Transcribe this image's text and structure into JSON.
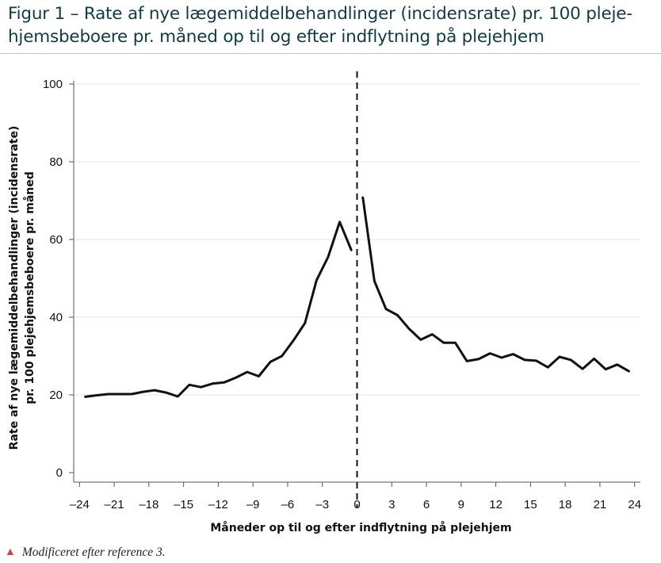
{
  "header": {
    "title": "Figur 1 – Rate af nye lægemiddelbehandlinger (incidensrate) pr. 100 pleje-hjemsbeboere pr. måned op til og efter indflytning på plejehjem"
  },
  "footnote": {
    "marker_icon": "triangle-icon",
    "marker_color": "#d83c3c",
    "text": "Modificeret efter reference 3."
  },
  "chart_data": {
    "type": "line",
    "title": "",
    "xlabel": "Måneder op til og efter indflytning på plejehjem",
    "ylabel_lines": [
      "Rate af nye lægemiddelbehandlinger (incidensrate)",
      "pr. 100 plejehjemsbeboere pr. måned"
    ],
    "xlim": [
      -24.5,
      24.5
    ],
    "ylim": [
      0,
      100
    ],
    "x_ticks": [
      -24,
      -21,
      -18,
      -15,
      -12,
      -9,
      -6,
      -3,
      0,
      3,
      6,
      9,
      12,
      15,
      18,
      21,
      24
    ],
    "y_ticks": [
      0,
      20,
      40,
      60,
      80,
      100
    ],
    "x_tick_labels": [
      "–24",
      "–21",
      "–18",
      "–15",
      "–12",
      "–9",
      "–6",
      "–3",
      "0",
      "3",
      "6",
      "9",
      "12",
      "15",
      "18",
      "21",
      "24"
    ],
    "y_tick_labels": [
      "0",
      "20",
      "40",
      "60",
      "80",
      "100"
    ],
    "grid": "horizontal",
    "reference_line": {
      "x": 0,
      "style": "dashed"
    },
    "line_color": "#111111",
    "series": [
      {
        "segment": "before",
        "x": [
          -23.5,
          -22.5,
          -21.5,
          -20.5,
          -19.5,
          -18.5,
          -17.5,
          -16.5,
          -15.5,
          -14.5,
          -13.5,
          -12.5,
          -11.5,
          -10.5,
          -9.5,
          -8.5,
          -7.5,
          -6.5,
          -5.5,
          -4.5,
          -3.5,
          -2.5,
          -1.5,
          -0.5
        ],
        "values": [
          19.5,
          19.9,
          20.2,
          20.2,
          20.2,
          20.8,
          21.2,
          20.6,
          19.6,
          22.6,
          22.0,
          22.9,
          23.2,
          24.4,
          25.9,
          24.8,
          28.5,
          30.0,
          34.0,
          38.5,
          49.5,
          55.5,
          64.5,
          57.3
        ]
      },
      {
        "segment": "after",
        "x": [
          0.5,
          1.5,
          2.5,
          3.5,
          4.5,
          5.5,
          6.5,
          7.5,
          8.5,
          9.5,
          10.5,
          11.5,
          12.5,
          13.5,
          14.5,
          15.5,
          16.5,
          17.5,
          18.5,
          19.5,
          20.5,
          21.5,
          22.5,
          23.5
        ],
        "values": [
          70.8,
          49.3,
          42.1,
          40.5,
          37.0,
          34.2,
          35.6,
          33.4,
          33.4,
          28.7,
          29.2,
          30.7,
          29.6,
          30.5,
          29.0,
          28.8,
          27.1,
          29.8,
          29.0,
          26.7,
          29.3,
          26.6,
          27.8,
          26.1
        ]
      }
    ]
  }
}
